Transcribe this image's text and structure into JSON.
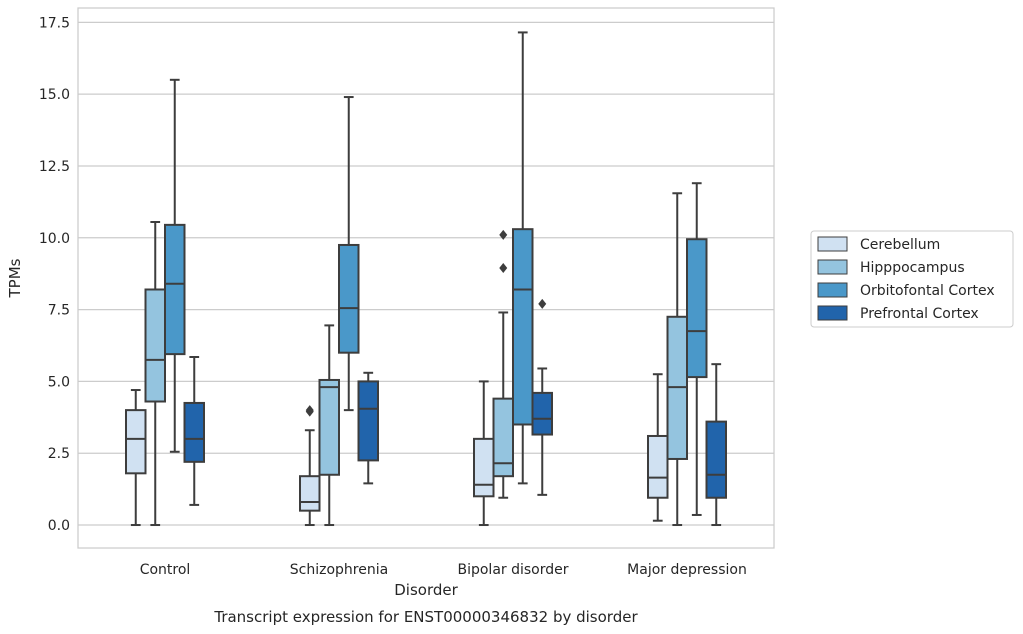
{
  "chart_data": {
    "type": "box",
    "title": "",
    "caption": "Transcript expression for ENST00000346832 by disorder",
    "xlabel": "Disorder",
    "ylabel": "TPMs",
    "ylim": [
      -0.8,
      18.0
    ],
    "yticks": [
      "0.0",
      "2.5",
      "5.0",
      "7.5",
      "10.0",
      "12.5",
      "15.0",
      "17.5"
    ],
    "categories": [
      "Control",
      "Schizophrenia",
      "Bipolar disorder",
      "Major depression"
    ],
    "grid": "horizontal",
    "legend_position": "right",
    "series": [
      {
        "name": "Cerebellum",
        "color": "#d0e1f2",
        "boxes": [
          {
            "whislo": 0.0,
            "q1": 1.8,
            "med": 3.0,
            "q3": 4.0,
            "whishi": 4.7,
            "fliers": []
          },
          {
            "whislo": 0.0,
            "q1": 0.5,
            "med": 0.8,
            "q3": 1.7,
            "whishi": 3.3,
            "fliers": [
              3.95,
              4.0
            ]
          },
          {
            "whislo": 0.0,
            "q1": 1.0,
            "med": 1.4,
            "q3": 3.0,
            "whishi": 5.0,
            "fliers": []
          },
          {
            "whislo": 0.15,
            "q1": 0.95,
            "med": 1.65,
            "q3": 3.1,
            "whishi": 5.25,
            "fliers": []
          }
        ]
      },
      {
        "name": "Hipppocampus",
        "color": "#94c4df",
        "boxes": [
          {
            "whislo": 0.0,
            "q1": 4.3,
            "med": 5.75,
            "q3": 8.2,
            "whishi": 10.55,
            "fliers": []
          },
          {
            "whislo": 0.0,
            "q1": 1.75,
            "med": 4.8,
            "q3": 5.05,
            "whishi": 6.95,
            "fliers": []
          },
          {
            "whislo": 0.95,
            "q1": 1.7,
            "med": 2.15,
            "q3": 4.4,
            "whishi": 7.4,
            "fliers": [
              8.95,
              10.1
            ]
          },
          {
            "whislo": 0.0,
            "q1": 2.3,
            "med": 4.8,
            "q3": 7.25,
            "whishi": 11.55,
            "fliers": []
          }
        ]
      },
      {
        "name": "Orbitofontal Cortex",
        "color": "#4a98c9",
        "boxes": [
          {
            "whislo": 2.55,
            "q1": 5.95,
            "med": 8.4,
            "q3": 10.45,
            "whishi": 15.5,
            "fliers": []
          },
          {
            "whislo": 4.0,
            "q1": 6.0,
            "med": 7.55,
            "q3": 9.75,
            "whishi": 14.9,
            "fliers": []
          },
          {
            "whislo": 1.45,
            "q1": 3.5,
            "med": 8.2,
            "q3": 10.3,
            "whishi": 17.15,
            "fliers": []
          },
          {
            "whislo": 0.35,
            "q1": 5.15,
            "med": 6.75,
            "q3": 9.95,
            "whishi": 11.9,
            "fliers": []
          }
        ]
      },
      {
        "name": "Prefrontal Cortex",
        "color": "#2164ab",
        "boxes": [
          {
            "whislo": 0.7,
            "q1": 2.2,
            "med": 3.0,
            "q3": 4.25,
            "whishi": 5.85,
            "fliers": []
          },
          {
            "whislo": 1.45,
            "q1": 2.25,
            "med": 4.05,
            "q3": 5.0,
            "whishi": 5.3,
            "fliers": []
          },
          {
            "whislo": 1.05,
            "q1": 3.15,
            "med": 3.7,
            "q3": 4.6,
            "whishi": 5.45,
            "fliers": [
              7.7
            ]
          },
          {
            "whislo": 0.0,
            "q1": 0.95,
            "med": 1.75,
            "q3": 3.6,
            "whishi": 5.6,
            "fliers": []
          }
        ]
      }
    ]
  }
}
